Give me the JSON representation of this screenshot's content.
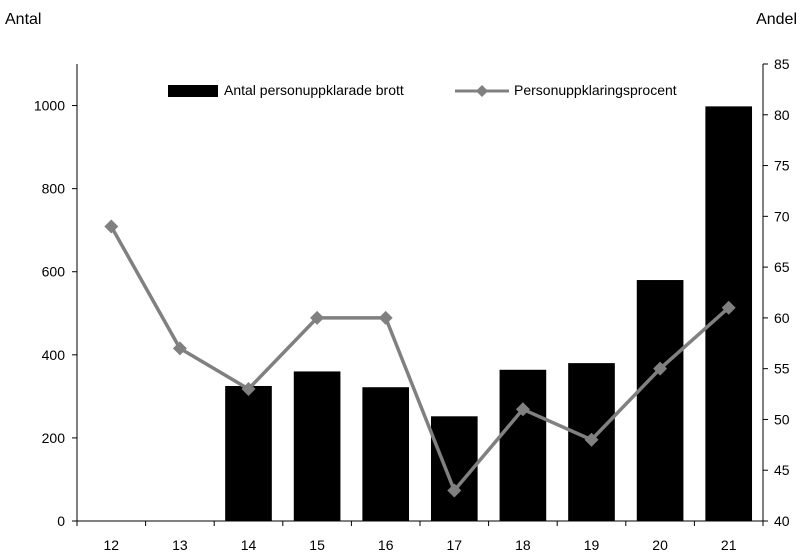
{
  "chart_data": {
    "type": "bar",
    "categories": [
      "12",
      "13",
      "14",
      "15",
      "16",
      "17",
      "18",
      "19",
      "20",
      "21"
    ],
    "left_axis_title": "Antal",
    "right_axis_title": "Andel",
    "ylim_left": [
      0,
      1100
    ],
    "yticks_left": [
      0,
      200,
      400,
      600,
      800,
      1000
    ],
    "ylim_right": [
      40,
      85
    ],
    "yticks_right": [
      40,
      45,
      50,
      55,
      60,
      65,
      70,
      75,
      80,
      85
    ],
    "grid": false,
    "legend_position": "top",
    "series": [
      {
        "name": "Antal personuppklarade brott",
        "type": "bar",
        "axis": "left",
        "color": "#000000",
        "values": [
          null,
          null,
          325,
          360,
          322,
          252,
          364,
          380,
          580,
          998
        ]
      },
      {
        "name": "Personuppklaringsprocent",
        "type": "line",
        "axis": "right",
        "color": "#808080",
        "marker": "diamond",
        "values": [
          69,
          57,
          53,
          60,
          60,
          43,
          51,
          48,
          55,
          61
        ]
      }
    ]
  }
}
